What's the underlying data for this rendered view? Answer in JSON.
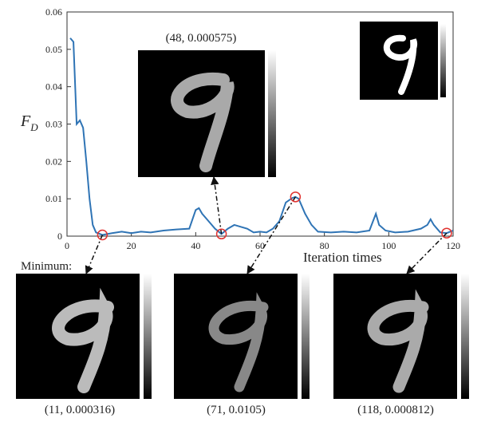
{
  "chart_data": {
    "type": "line",
    "ylabel": {
      "main": "F",
      "sub": "D"
    },
    "xlabel": "Iteration times",
    "minimum_label": "Minimum:",
    "xlim": [
      0,
      120
    ],
    "xticks": [
      0,
      20,
      40,
      60,
      80,
      100,
      120
    ],
    "ylim": [
      0,
      0.06
    ],
    "yticks": [
      0,
      0.01,
      0.02,
      0.03,
      0.04,
      0.05,
      0.06
    ],
    "series": [
      {
        "color": "#2f74b5",
        "x": [
          1,
          2,
          3,
          4,
          5,
          6,
          7,
          8,
          9,
          11,
          14,
          17,
          20,
          23,
          26,
          30,
          34,
          38,
          40,
          41,
          42,
          44,
          46,
          48,
          50,
          52,
          54,
          56,
          58,
          60,
          62,
          64,
          66,
          68,
          70,
          71,
          72,
          74,
          76,
          78,
          82,
          86,
          90,
          94,
          96,
          97,
          99,
          102,
          106,
          110,
          112,
          113,
          114,
          116,
          118,
          120
        ],
        "values": [
          0.053,
          0.052,
          0.03,
          0.031,
          0.029,
          0.02,
          0.01,
          0.003,
          0.001,
          0.000316,
          0.0008,
          0.0012,
          0.0008,
          0.0012,
          0.001,
          0.0015,
          0.0018,
          0.002,
          0.007,
          0.0075,
          0.006,
          0.004,
          0.002,
          0.000575,
          0.002,
          0.003,
          0.0025,
          0.002,
          0.001,
          0.0012,
          0.001,
          0.002,
          0.004,
          0.009,
          0.0102,
          0.0105,
          0.01,
          0.006,
          0.003,
          0.0012,
          0.001,
          0.0012,
          0.001,
          0.0015,
          0.006,
          0.003,
          0.0015,
          0.001,
          0.0012,
          0.002,
          0.003,
          0.0045,
          0.003,
          0.001,
          0.000812,
          0.0015
        ]
      }
    ],
    "annotations": [
      {
        "text": "(11, 0.000316)",
        "x": 11,
        "y": 0.000316
      },
      {
        "text": "(48, 0.000575)",
        "x": 48,
        "y": 0.000575
      },
      {
        "text": "(71, 0.0105)",
        "x": 71,
        "y": 0.0105
      },
      {
        "text": "(118, 0.000812)",
        "x": 118,
        "y": 0.000812
      }
    ],
    "marker_color": "#e0322f"
  }
}
